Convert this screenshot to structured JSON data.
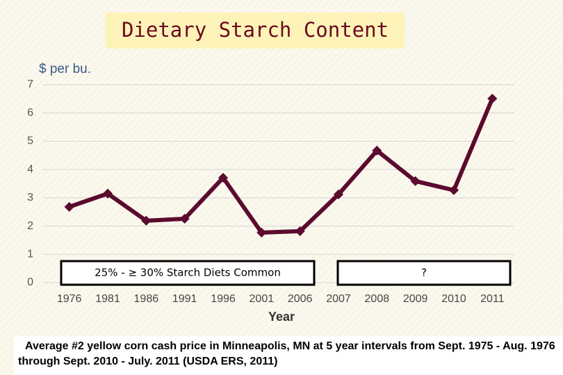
{
  "chart_data": {
    "type": "line",
    "title": "Dietary Starch Content",
    "y_label": "$ per bu.",
    "x_label": "Year",
    "categories": [
      "1976",
      "1981",
      "1986",
      "1991",
      "1996",
      "2001",
      "2006",
      "2007",
      "2008",
      "2009",
      "2010",
      "2011"
    ],
    "values": [
      2.68,
      3.15,
      2.19,
      2.26,
      3.71,
      1.77,
      1.82,
      3.12,
      4.67,
      3.59,
      3.27,
      6.51
    ],
    "color": "#5a0b2e",
    "ylim": [
      0,
      7
    ],
    "yticks": [
      0,
      1,
      2,
      3,
      4,
      5,
      6,
      7
    ],
    "grid": true,
    "annotations": [
      "25% - ≥ 30% Starch Diets Common",
      "?"
    ],
    "caption": "Average #2 yellow corn cash price in Minneapolis, MN at 5 year intervals from Sept. 1975 - Aug. 1976 through Sept. 2010 - July. 2011 (USDA ERS, 2011)"
  }
}
